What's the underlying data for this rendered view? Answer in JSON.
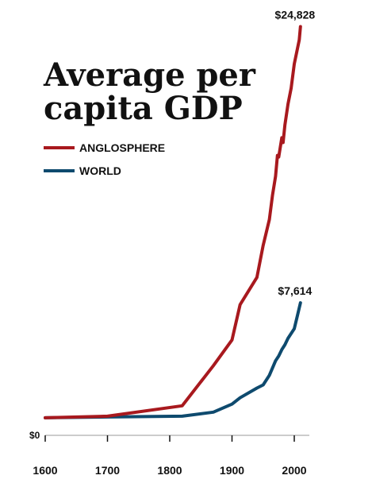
{
  "chart_data": {
    "type": "line",
    "title_lines": [
      "Average per",
      "capita GDP"
    ],
    "xlabel": "",
    "ylabel": "",
    "xlim": [
      1600,
      2020
    ],
    "ylim": [
      0,
      25000
    ],
    "x_ticks": [
      1600,
      1700,
      1800,
      1900,
      2000
    ],
    "y_zero_label": "$0",
    "grid": false,
    "legend_position": "top-left",
    "series": [
      {
        "name": "ANGLOSPHERE",
        "color": "#a8191e",
        "end_label": "$24,828",
        "points": [
          [
            1600,
            450
          ],
          [
            1700,
            550
          ],
          [
            1820,
            1200
          ],
          [
            1870,
            3700
          ],
          [
            1900,
            5300
          ],
          [
            1913,
            7500
          ],
          [
            1940,
            9200
          ],
          [
            1950,
            11200
          ],
          [
            1955,
            12000
          ],
          [
            1960,
            12800
          ],
          [
            1965,
            14300
          ],
          [
            1970,
            15500
          ],
          [
            1973,
            16800
          ],
          [
            1975,
            16700
          ],
          [
            1980,
            17900
          ],
          [
            1982,
            17600
          ],
          [
            1985,
            18700
          ],
          [
            1990,
            20000
          ],
          [
            1995,
            21000
          ],
          [
            2000,
            22500
          ],
          [
            2008,
            24000
          ],
          [
            2010,
            24828
          ]
        ]
      },
      {
        "name": "WORLD",
        "color": "#0e4a6e",
        "end_label": "$7,614",
        "points": [
          [
            1600,
            450
          ],
          [
            1700,
            500
          ],
          [
            1820,
            550
          ],
          [
            1870,
            800
          ],
          [
            1900,
            1300
          ],
          [
            1913,
            1700
          ],
          [
            1940,
            2300
          ],
          [
            1950,
            2500
          ],
          [
            1960,
            3100
          ],
          [
            1970,
            4000
          ],
          [
            1975,
            4300
          ],
          [
            1980,
            4700
          ],
          [
            1985,
            5000
          ],
          [
            1990,
            5400
          ],
          [
            2000,
            6000
          ],
          [
            2005,
            6800
          ],
          [
            2010,
            7614
          ]
        ]
      }
    ]
  }
}
